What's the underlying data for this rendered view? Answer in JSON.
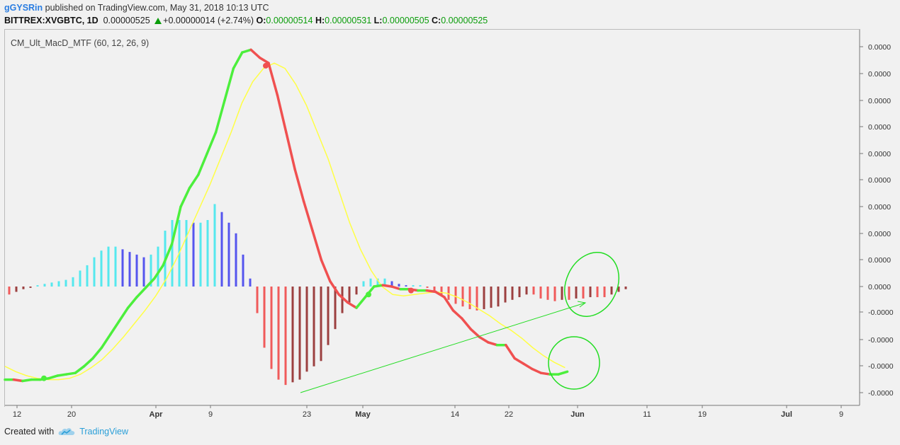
{
  "header": {
    "user": "gGYSRin",
    "published": " published on TradingView.com, May 31, 2018 10:13 UTC",
    "symbol": "BITTREX:XVGBTC, 1D",
    "price": "0.00000525",
    "change": "+0.00000014 (+2.74%)",
    "ohlc": [
      {
        "k": "O:",
        "v": "0.00000514"
      },
      {
        "k": "H:",
        "v": "0.00000531"
      },
      {
        "k": "L:",
        "v": "0.00000505"
      },
      {
        "k": "C:",
        "v": "0.00000525"
      }
    ]
  },
  "indicator_label": "CM_Ult_MacD_MTF (60, 12, 26, 9)",
  "footer": {
    "created_with": "Created with",
    "brand": "TradingView"
  },
  "colors": {
    "macd_up": "#4cef3c",
    "macd_down": "#f05050",
    "signal": "#ffff44",
    "hist_cyan": "#55e8ee",
    "hist_blue": "#5555ee",
    "hist_red": "#f05a5a",
    "hist_maroon": "#9c4040",
    "annotation": "#22dd22"
  },
  "chart_data": {
    "type": "line",
    "x_ticks": [
      "12",
      "20",
      "Apr",
      "9",
      "23",
      "May",
      "14",
      "22",
      "Jun",
      "11",
      "19",
      "Jul",
      "9"
    ],
    "y_ticks": [
      "0.0000",
      "0.0000",
      "0.0000",
      "0.0000",
      "0.0000",
      "0.0000",
      "0.0000",
      "0.0000",
      "0.0000",
      "0.0000",
      "-0.0000",
      "-0.0000",
      "-0.0000",
      "-0.0000"
    ],
    "ylim": [
      -4.2,
      9.3
    ],
    "x_start_day": 0,
    "series": [
      {
        "values": [
          -3.5,
          -3.5,
          -3.55,
          -3.5,
          -3.5,
          -3.45,
          -3.35,
          -3.3,
          -3.25,
          -3.0,
          -2.7,
          -2.3,
          -1.8,
          -1.3,
          -0.8,
          -0.4,
          -0.05,
          0.3,
          0.8,
          1.6,
          3.0,
          3.7,
          4.2,
          5.0,
          5.8,
          7.0,
          8.2,
          8.8,
          8.9,
          8.6,
          8.4,
          7.2,
          5.8,
          4.4,
          3.2,
          2.1,
          1.0,
          0.2,
          -0.3,
          -0.6,
          -0.8,
          -0.4,
          0.0,
          0.05,
          0.0,
          -0.1,
          -0.1,
          -0.15,
          -0.15,
          -0.2,
          -0.4,
          -0.9,
          -1.2,
          -1.6,
          -1.9,
          -2.1,
          -2.2,
          -2.2,
          -2.7,
          -2.9,
          -3.1,
          -3.25,
          -3.3,
          -3.3,
          -3.2
        ]
      },
      {
        "values": [
          -3.0,
          -3.2,
          -3.35,
          -3.45,
          -3.5,
          -3.5,
          -3.45,
          -3.3,
          -3.05,
          -2.75,
          -2.35,
          -1.9,
          -1.4,
          -0.9,
          -0.35,
          0.3,
          1.1,
          2.0,
          2.9,
          3.8,
          4.8,
          5.8,
          6.9,
          7.7,
          8.2,
          8.4,
          8.2,
          7.6,
          6.8,
          5.8,
          4.8,
          3.6,
          2.4,
          1.4,
          0.6,
          0.0,
          -0.3,
          -0.35,
          -0.3,
          -0.25,
          -0.2,
          -0.25,
          -0.4,
          -0.6,
          -0.85,
          -1.1,
          -1.4,
          -1.65,
          -1.95,
          -2.3,
          -2.6,
          -2.85,
          -3.05
        ]
      }
    ],
    "histogram": [
      -0.3,
      -0.2,
      -0.1,
      -0.05,
      0.05,
      0.1,
      0.15,
      0.2,
      0.25,
      0.35,
      0.6,
      0.8,
      1.1,
      1.35,
      1.5,
      1.5,
      1.4,
      1.3,
      1.2,
      1.1,
      1.2,
      1.5,
      2.1,
      2.5,
      2.5,
      2.5,
      2.4,
      2.4,
      2.5,
      3.1,
      2.8,
      2.4,
      2.0,
      1.2,
      0.3,
      -1.0,
      -2.3,
      -3.1,
      -3.5,
      -3.7,
      -3.6,
      -3.5,
      -3.2,
      -3.0,
      -2.8,
      -2.2,
      -1.6,
      -1.0,
      -0.6,
      -0.3,
      0.2,
      0.3,
      0.3,
      0.3,
      0.2,
      0.1,
      0.05,
      0.05,
      0.05,
      -0.05,
      -0.15,
      -0.35,
      -0.5,
      -0.65,
      -0.75,
      -0.85,
      -0.9,
      -0.85,
      -0.8,
      -0.75,
      -0.6,
      -0.5,
      -0.4,
      -0.3,
      -0.3,
      -0.45,
      -0.5,
      -0.55,
      -0.5,
      -0.5,
      -0.45,
      -0.45,
      -0.4,
      -0.4,
      -0.4,
      -0.3,
      -0.2,
      -0.1
    ]
  }
}
